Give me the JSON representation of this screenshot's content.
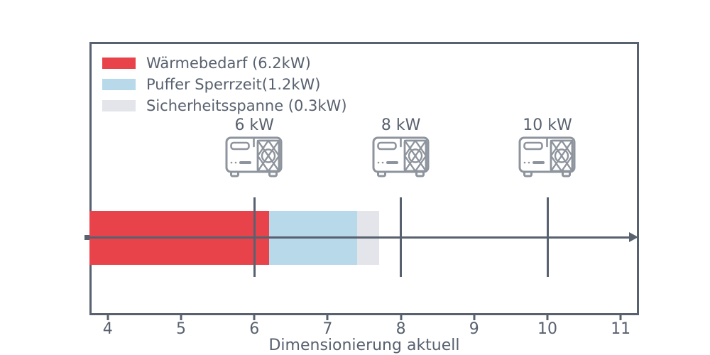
{
  "chart_data": {
    "type": "bar",
    "orientation": "horizontal-stacked",
    "title": "",
    "xlabel": "Dimensionierung aktuell",
    "ylabel": "",
    "xlim": [
      3.75,
      11.25
    ],
    "xticks": [
      4,
      5,
      6,
      7,
      8,
      9,
      10,
      11
    ],
    "grid": false,
    "legend_position": "upper-left",
    "x_axis_arrow": true,
    "bar": {
      "segments": [
        {
          "name": "waermebedarf",
          "label": "Wärmebedarf (6.2kW)",
          "value_kw": 6.2,
          "x_start": 3.75,
          "x_end": 6.2,
          "color": "#e8434b"
        },
        {
          "name": "puffer-sperrzeit",
          "label": "Puffer Sperrzeit(1.2kW)",
          "value_kw": 1.2,
          "x_start": 6.2,
          "x_end": 7.4,
          "color": "#b7d9ea"
        },
        {
          "name": "sicherheitsspanne",
          "label": "Sicherheitsspanne (0.3kW)",
          "value_kw": 0.3,
          "x_start": 7.4,
          "x_end": 7.7,
          "color": "#e3e5ea"
        }
      ]
    },
    "pump_markers": [
      {
        "label": "6 kW",
        "x": 6
      },
      {
        "label": "8 kW",
        "x": 8
      },
      {
        "label": "10 kW",
        "x": 10
      }
    ]
  },
  "colors": {
    "axis": "#58616f",
    "icon": "#8e949d",
    "background": "#ffffff"
  }
}
